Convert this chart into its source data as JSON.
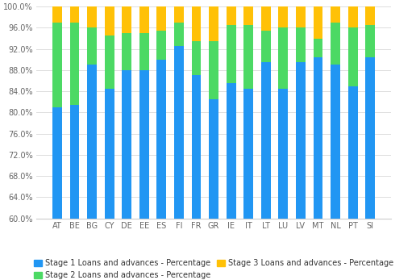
{
  "countries": [
    "AT",
    "BE",
    "BG",
    "CY",
    "DE",
    "EE",
    "ES",
    "FI",
    "FR",
    "GR",
    "IE",
    "IT",
    "LT",
    "LU",
    "LV",
    "MT",
    "NL",
    "PT",
    "SI"
  ],
  "stage1": [
    81.0,
    81.5,
    89.0,
    84.5,
    88.0,
    88.0,
    90.0,
    92.5,
    87.0,
    82.5,
    85.5,
    84.5,
    89.5,
    84.5,
    89.5,
    90.5,
    89.0,
    85.0,
    90.5
  ],
  "stage2": [
    16.0,
    15.5,
    7.0,
    10.0,
    7.0,
    7.0,
    5.5,
    4.5,
    6.5,
    11.0,
    11.0,
    12.0,
    6.0,
    11.5,
    6.5,
    3.5,
    8.0,
    11.0,
    6.0
  ],
  "stage3": [
    3.0,
    3.0,
    4.0,
    5.5,
    5.0,
    5.0,
    4.5,
    3.0,
    6.5,
    6.5,
    3.5,
    3.5,
    4.5,
    4.0,
    4.0,
    6.0,
    3.0,
    4.0,
    3.5
  ],
  "color_stage1": "#2196F3",
  "color_stage2": "#4CD964",
  "color_stage3": "#FFC107",
  "ymin": 60.0,
  "ymax": 100.0,
  "yticks": [
    60.0,
    64.0,
    68.0,
    72.0,
    76.0,
    80.0,
    84.0,
    88.0,
    92.0,
    96.0,
    100.0
  ],
  "legend_labels": [
    "Stage 1 Loans and advances - Percentage",
    "Stage 2 Loans and advances - Percentage",
    "Stage 3 Loans and advances - Percentage"
  ],
  "bg_color": "#FFFFFF",
  "grid_color": "#DDDDDD",
  "bar_width": 0.55,
  "tick_fontsize": 7.0,
  "legend_fontsize": 7.0
}
